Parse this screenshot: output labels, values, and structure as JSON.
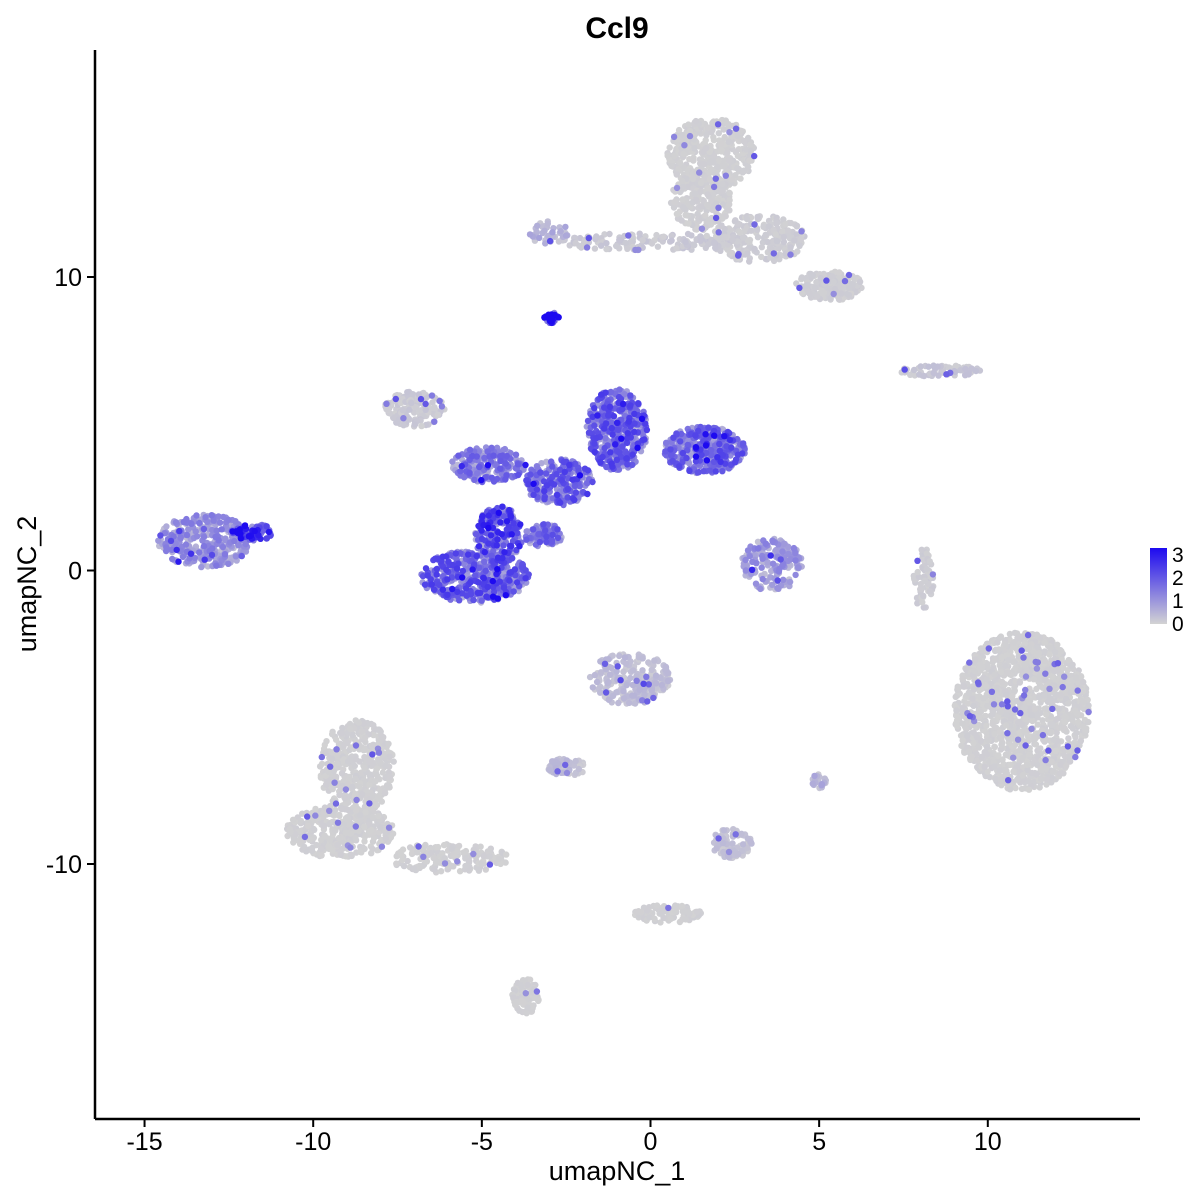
{
  "chart_data": {
    "type": "scatter",
    "title": "Ccl9",
    "xlabel": "umapNC_1",
    "ylabel": "umapNC_2",
    "xlim": [
      -16.5,
      14.5
    ],
    "ylim": [
      -18.5,
      17.5
    ],
    "xticks": [
      -15,
      -10,
      -5,
      0,
      5,
      10
    ],
    "yticks": [
      -10,
      0,
      10
    ],
    "grid": false,
    "legend": {
      "placement": "right",
      "type": "colorbar",
      "labels": [
        "3",
        "2",
        "1",
        "0"
      ],
      "range": [
        0,
        3.3
      ],
      "low_color": "#d3d3d3",
      "high_color": "#1d0af0"
    },
    "clusters": [
      {
        "cx": 1.8,
        "cy": 14.2,
        "rx": 1.3,
        "ry": 1.2,
        "expr": 0.05,
        "n": 420
      },
      {
        "cx": 1.5,
        "cy": 12.6,
        "rx": 0.9,
        "ry": 1.0,
        "expr": 0.06,
        "n": 220
      },
      {
        "cx": 3.2,
        "cy": 11.3,
        "rx": 1.4,
        "ry": 0.8,
        "expr": 0.1,
        "n": 240
      },
      {
        "cx": 5.3,
        "cy": 9.7,
        "rx": 1.0,
        "ry": 0.5,
        "expr": 0.08,
        "n": 180
      },
      {
        "cx": 0.0,
        "cy": 11.2,
        "rx": 2.8,
        "ry": 0.3,
        "expr": 0.15,
        "n": 140
      },
      {
        "cx": -3.0,
        "cy": 11.5,
        "rx": 0.6,
        "ry": 0.4,
        "expr": 0.5,
        "n": 40
      },
      {
        "cx": -2.9,
        "cy": 8.6,
        "rx": 0.25,
        "ry": 0.18,
        "expr": 2.8,
        "n": 30
      },
      {
        "cx": 8.6,
        "cy": 6.8,
        "rx": 1.2,
        "ry": 0.2,
        "expr": 0.2,
        "n": 70
      },
      {
        "cx": -7.0,
        "cy": 5.5,
        "rx": 0.9,
        "ry": 0.6,
        "expr": 0.15,
        "n": 150
      },
      {
        "cx": -1.0,
        "cy": 4.8,
        "rx": 0.9,
        "ry": 1.4,
        "expr": 1.5,
        "n": 420
      },
      {
        "cx": 1.6,
        "cy": 4.1,
        "rx": 1.2,
        "ry": 0.8,
        "expr": 1.4,
        "n": 380
      },
      {
        "cx": -2.7,
        "cy": 3.0,
        "rx": 1.0,
        "ry": 0.8,
        "expr": 1.5,
        "n": 240
      },
      {
        "cx": -4.8,
        "cy": 3.6,
        "rx": 1.1,
        "ry": 0.6,
        "expr": 1.2,
        "n": 200
      },
      {
        "cx": -4.5,
        "cy": 1.2,
        "rx": 0.7,
        "ry": 1.0,
        "expr": 1.8,
        "n": 200
      },
      {
        "cx": -5.2,
        "cy": -0.2,
        "rx": 1.6,
        "ry": 0.9,
        "expr": 1.5,
        "n": 420
      },
      {
        "cx": -3.2,
        "cy": 1.2,
        "rx": 0.6,
        "ry": 0.4,
        "expr": 1.3,
        "n": 90
      },
      {
        "cx": -13.2,
        "cy": 1.0,
        "rx": 1.4,
        "ry": 0.9,
        "expr": 0.9,
        "n": 340
      },
      {
        "cx": -11.8,
        "cy": 1.3,
        "rx": 0.6,
        "ry": 0.3,
        "expr": 2.0,
        "n": 80
      },
      {
        "cx": 3.6,
        "cy": 0.2,
        "rx": 0.9,
        "ry": 0.9,
        "expr": 0.8,
        "n": 180
      },
      {
        "cx": 8.1,
        "cy": -0.3,
        "rx": 0.3,
        "ry": 1.1,
        "expr": 0.1,
        "n": 70
      },
      {
        "cx": 11.0,
        "cy": -4.8,
        "rx": 2.0,
        "ry": 2.7,
        "expr": 0.05,
        "n": 1500
      },
      {
        "cx": -0.6,
        "cy": -3.7,
        "rx": 1.2,
        "ry": 0.9,
        "expr": 0.3,
        "n": 240
      },
      {
        "cx": -2.5,
        "cy": -6.7,
        "rx": 0.6,
        "ry": 0.3,
        "expr": 0.3,
        "n": 60
      },
      {
        "cx": -8.7,
        "cy": -6.7,
        "rx": 1.1,
        "ry": 1.6,
        "expr": 0.05,
        "n": 420
      },
      {
        "cx": -9.2,
        "cy": -8.9,
        "rx": 1.6,
        "ry": 0.9,
        "expr": 0.05,
        "n": 380
      },
      {
        "cx": -6.0,
        "cy": -9.8,
        "rx": 1.8,
        "ry": 0.5,
        "expr": 0.05,
        "n": 180
      },
      {
        "cx": -3.7,
        "cy": -14.5,
        "rx": 0.4,
        "ry": 0.6,
        "expr": 0.05,
        "n": 90
      },
      {
        "cx": 2.4,
        "cy": -9.3,
        "rx": 0.6,
        "ry": 0.5,
        "expr": 0.25,
        "n": 100
      },
      {
        "cx": 0.5,
        "cy": -11.7,
        "rx": 1.0,
        "ry": 0.3,
        "expr": 0.05,
        "n": 100
      },
      {
        "cx": 5.0,
        "cy": -7.2,
        "rx": 0.2,
        "ry": 0.3,
        "expr": 0.5,
        "n": 20
      }
    ]
  }
}
